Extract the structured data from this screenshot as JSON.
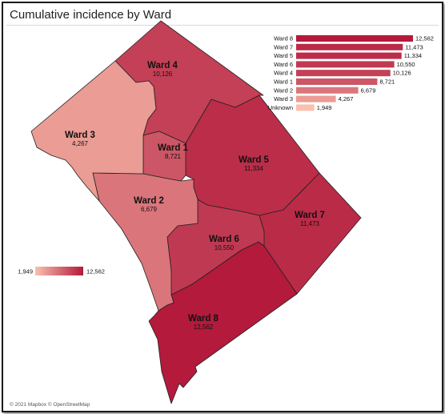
{
  "title": "Cumulative incidence by Ward",
  "attribution": "© 2021 Mapbox © OpenStreetMap",
  "colors": {
    "low": "#f9c0ae",
    "high": "#b31a3c",
    "border": "#222222"
  },
  "map_data": {
    "wards": [
      {
        "name": "Ward 1",
        "value": 8721,
        "value_label": "8,721"
      },
      {
        "name": "Ward 2",
        "value": 6679,
        "value_label": "6,679"
      },
      {
        "name": "Ward 3",
        "value": 4267,
        "value_label": "4,267"
      },
      {
        "name": "Ward 4",
        "value": 10126,
        "value_label": "10,126"
      },
      {
        "name": "Ward 5",
        "value": 11334,
        "value_label": "11,334"
      },
      {
        "name": "Ward 6",
        "value": 10550,
        "value_label": "10,550"
      },
      {
        "name": "Ward 7",
        "value": 11473,
        "value_label": "11,473"
      },
      {
        "name": "Ward 8",
        "value": 12562,
        "value_label": "12,562"
      }
    ]
  },
  "chart_data": {
    "type": "bar",
    "orientation": "horizontal",
    "categories": [
      "Ward 8",
      "Ward 7",
      "Ward 5",
      "Ward 6",
      "Ward 4",
      "Ward 1",
      "Ward 2",
      "Ward 3",
      "Unknown"
    ],
    "values": [
      12562,
      11473,
      11334,
      10550,
      10126,
      8721,
      6679,
      4267,
      1949
    ],
    "value_labels": [
      "12,562",
      "11,473",
      "11,334",
      "10,550",
      "10,126",
      "8,721",
      "6,679",
      "4,267",
      "1,949"
    ],
    "xlim": [
      0,
      12562
    ]
  },
  "legend": {
    "min_label": "1,949",
    "max_label": "12,562",
    "min": 1949,
    "max": 12562
  }
}
